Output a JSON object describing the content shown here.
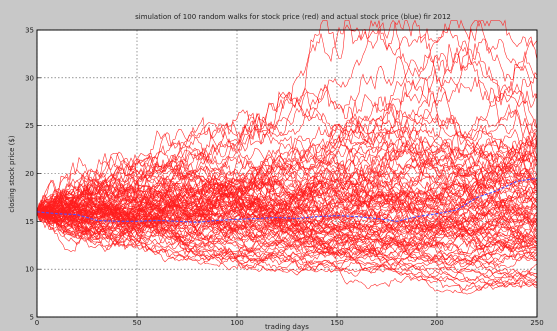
{
  "chart_data": {
    "type": "line",
    "title": "simulation of 100 random walks for stock price (red) and actual stock price (blue) fir 2012",
    "xlabel": "trading days",
    "ylabel": "closing stock price ($)",
    "xlim": [
      0,
      250
    ],
    "ylim": [
      5,
      35
    ],
    "xticks": [
      0,
      50,
      100,
      150,
      200,
      250
    ],
    "yticks": [
      5,
      10,
      15,
      20,
      25,
      30,
      35
    ],
    "grid": true,
    "colors": {
      "simulated": "#ff1e1e",
      "actual": "#5050ff"
    },
    "simulated_walks": {
      "count": 100,
      "start_value": 16,
      "num_days": 250
    },
    "series": [
      {
        "name": "actual stock price (blue)",
        "x": [
          0,
          10,
          20,
          30,
          40,
          50,
          60,
          70,
          80,
          90,
          100,
          110,
          120,
          130,
          140,
          150,
          160,
          170,
          180,
          190,
          200,
          210,
          220,
          230,
          240,
          250
        ],
        "values": [
          16,
          15.8,
          15.7,
          15.1,
          15.0,
          15.0,
          15.1,
          15.0,
          14.9,
          15.1,
          15.2,
          15.3,
          15.4,
          15.3,
          15.5,
          15.6,
          15.5,
          15.3,
          15.0,
          15.5,
          15.8,
          16.2,
          17.5,
          18.2,
          19.2,
          19.5
        ]
      }
    ]
  }
}
